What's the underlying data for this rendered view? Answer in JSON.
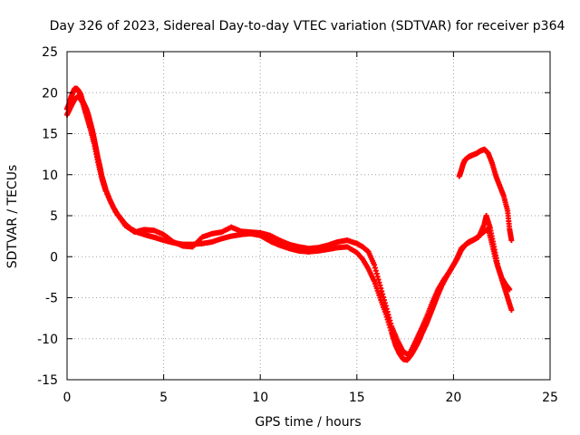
{
  "chart_data": {
    "type": "scatter",
    "title": "Day 326 of 2023, Sidereal Day-to-day VTEC variation (SDTVAR) for receiver p364",
    "xlabel": "GPS time / hours",
    "ylabel": "SDTVAR / TECUs",
    "xlim": [
      0,
      25
    ],
    "ylim": [
      -15,
      25
    ],
    "x_ticks": [
      "0",
      "5",
      "10",
      "15",
      "20",
      "25"
    ],
    "y_ticks": [
      "25",
      "20",
      "15",
      "10",
      "5",
      "0",
      "-5",
      "-10",
      "-15"
    ],
    "x_tick_values": [
      0,
      5,
      10,
      15,
      20,
      25
    ],
    "y_tick_values": [
      25,
      20,
      15,
      10,
      5,
      0,
      -5,
      -10,
      -15
    ],
    "grid": true,
    "marker": "+",
    "color": "#ff0000",
    "series": [
      {
        "name": "main",
        "points": [
          [
            0.0,
            18.0
          ],
          [
            0.1,
            18.6
          ],
          [
            0.2,
            19.4
          ],
          [
            0.3,
            20.0
          ],
          [
            0.4,
            20.5
          ],
          [
            0.5,
            20.5
          ],
          [
            0.6,
            20.2
          ],
          [
            0.7,
            19.8
          ],
          [
            0.8,
            19.0
          ],
          [
            0.9,
            18.5
          ],
          [
            1.0,
            18.0
          ],
          [
            1.1,
            17.3
          ],
          [
            1.2,
            16.4
          ],
          [
            1.3,
            15.5
          ],
          [
            1.4,
            14.4
          ],
          [
            1.5,
            13.2
          ],
          [
            1.6,
            12.0
          ],
          [
            1.7,
            11.0
          ],
          [
            1.8,
            9.8
          ],
          [
            1.9,
            9.0
          ],
          [
            2.0,
            8.2
          ],
          [
            2.2,
            7.0
          ],
          [
            2.4,
            6.0
          ],
          [
            2.6,
            5.2
          ],
          [
            2.8,
            4.6
          ],
          [
            3.0,
            4.0
          ],
          [
            3.3,
            3.4
          ],
          [
            3.6,
            3.0
          ],
          [
            4.0,
            2.7
          ],
          [
            4.3,
            2.5
          ],
          [
            4.6,
            2.3
          ],
          [
            5.0,
            2.0
          ],
          [
            5.5,
            1.7
          ],
          [
            6.0,
            1.5
          ],
          [
            6.5,
            1.5
          ],
          [
            7.0,
            1.6
          ],
          [
            7.5,
            1.8
          ],
          [
            8.0,
            2.2
          ],
          [
            8.5,
            2.5
          ],
          [
            9.0,
            2.7
          ],
          [
            9.5,
            2.8
          ],
          [
            10.0,
            2.6
          ],
          [
            10.3,
            2.2
          ],
          [
            10.6,
            1.8
          ],
          [
            11.0,
            1.4
          ],
          [
            11.5,
            1.0
          ],
          [
            12.0,
            0.7
          ],
          [
            12.5,
            0.6
          ],
          [
            13.0,
            0.7
          ],
          [
            13.5,
            0.9
          ],
          [
            14.0,
            1.1
          ],
          [
            14.5,
            1.2
          ],
          [
            15.0,
            0.5
          ],
          [
            15.3,
            -0.3
          ],
          [
            15.6,
            -1.5
          ],
          [
            15.9,
            -3.0
          ],
          [
            16.2,
            -5.0
          ],
          [
            16.5,
            -7.0
          ],
          [
            16.8,
            -9.3
          ],
          [
            17.0,
            -10.8
          ],
          [
            17.2,
            -11.8
          ],
          [
            17.4,
            -12.5
          ],
          [
            17.6,
            -12.6
          ],
          [
            17.8,
            -12.0
          ],
          [
            18.0,
            -11.2
          ],
          [
            18.2,
            -10.3
          ],
          [
            18.4,
            -9.2
          ],
          [
            18.6,
            -8.2
          ],
          [
            18.8,
            -7.0
          ],
          [
            19.0,
            -5.8
          ],
          [
            19.2,
            -4.6
          ],
          [
            19.4,
            -3.5
          ],
          [
            19.6,
            -2.6
          ],
          [
            19.8,
            -1.8
          ],
          [
            20.0,
            -1.0
          ],
          [
            20.2,
            -0.2
          ],
          [
            20.4,
            0.8
          ],
          [
            20.6,
            1.4
          ],
          [
            20.8,
            1.8
          ],
          [
            21.0,
            2.0
          ],
          [
            21.2,
            2.3
          ],
          [
            21.4,
            2.7
          ],
          [
            21.6,
            3.1
          ],
          [
            21.8,
            3.4
          ],
          [
            22.0,
            1.5
          ],
          [
            22.2,
            -0.5
          ],
          [
            22.4,
            -2.0
          ],
          [
            22.6,
            -3.5
          ],
          [
            22.8,
            -5.0
          ],
          [
            23.0,
            -6.5
          ]
        ]
      },
      {
        "name": "upper",
        "points": [
          [
            0.0,
            17.3
          ],
          [
            0.2,
            18.3
          ],
          [
            0.4,
            19.2
          ],
          [
            0.6,
            19.6
          ],
          [
            0.8,
            18.8
          ],
          [
            1.0,
            17.2
          ],
          [
            1.2,
            15.6
          ],
          [
            1.4,
            13.8
          ],
          [
            1.6,
            11.5
          ],
          [
            1.8,
            9.5
          ],
          [
            2.0,
            8.0
          ],
          [
            2.5,
            5.5
          ],
          [
            3.0,
            3.8
          ],
          [
            3.5,
            3.0
          ],
          [
            4.0,
            3.3
          ],
          [
            4.5,
            3.2
          ],
          [
            5.0,
            2.7
          ],
          [
            5.5,
            1.8
          ],
          [
            6.0,
            1.3
          ],
          [
            6.5,
            1.2
          ],
          [
            7.0,
            2.4
          ],
          [
            7.5,
            2.8
          ],
          [
            8.0,
            3.0
          ],
          [
            8.5,
            3.6
          ],
          [
            9.0,
            3.1
          ],
          [
            9.5,
            3.0
          ],
          [
            10.0,
            2.9
          ],
          [
            10.5,
            2.6
          ],
          [
            11.0,
            2.0
          ],
          [
            11.5,
            1.5
          ],
          [
            12.0,
            1.2
          ],
          [
            12.5,
            1.0
          ],
          [
            13.0,
            1.1
          ],
          [
            13.5,
            1.4
          ],
          [
            14.0,
            1.8
          ],
          [
            14.5,
            2.0
          ],
          [
            15.0,
            1.6
          ],
          [
            15.3,
            1.2
          ],
          [
            15.6,
            0.6
          ],
          [
            15.9,
            -1.0
          ],
          [
            16.2,
            -3.5
          ],
          [
            16.5,
            -6.0
          ],
          [
            16.8,
            -8.5
          ],
          [
            17.1,
            -10.2
          ],
          [
            17.4,
            -11.6
          ],
          [
            17.7,
            -12.0
          ],
          [
            18.0,
            -10.5
          ],
          [
            18.3,
            -9.0
          ],
          [
            18.6,
            -7.4
          ],
          [
            18.9,
            -5.6
          ],
          [
            19.2,
            -4.0
          ],
          [
            19.5,
            -2.8
          ],
          [
            19.8,
            -1.8
          ],
          [
            20.1,
            -0.6
          ],
          [
            20.4,
            1.0
          ],
          [
            20.7,
            1.6
          ],
          [
            21.0,
            2.0
          ],
          [
            21.3,
            2.4
          ],
          [
            21.6,
            4.0
          ],
          [
            21.7,
            5.0
          ],
          [
            21.9,
            3.5
          ],
          [
            22.1,
            1.2
          ],
          [
            22.3,
            -1.2
          ],
          [
            22.5,
            -2.6
          ],
          [
            22.7,
            -3.4
          ],
          [
            22.9,
            -4.0
          ]
        ]
      },
      {
        "name": "late-upper",
        "points": [
          [
            20.3,
            9.8
          ],
          [
            20.4,
            10.5
          ],
          [
            20.5,
            11.3
          ],
          [
            20.6,
            11.8
          ],
          [
            20.8,
            12.2
          ],
          [
            21.0,
            12.4
          ],
          [
            21.2,
            12.6
          ],
          [
            21.4,
            12.9
          ],
          [
            21.6,
            13.1
          ],
          [
            21.8,
            12.6
          ],
          [
            22.0,
            11.4
          ],
          [
            22.2,
            9.8
          ],
          [
            22.4,
            8.6
          ],
          [
            22.6,
            7.4
          ],
          [
            22.8,
            5.6
          ],
          [
            22.9,
            3.4
          ],
          [
            23.0,
            2.0
          ]
        ]
      }
    ]
  }
}
